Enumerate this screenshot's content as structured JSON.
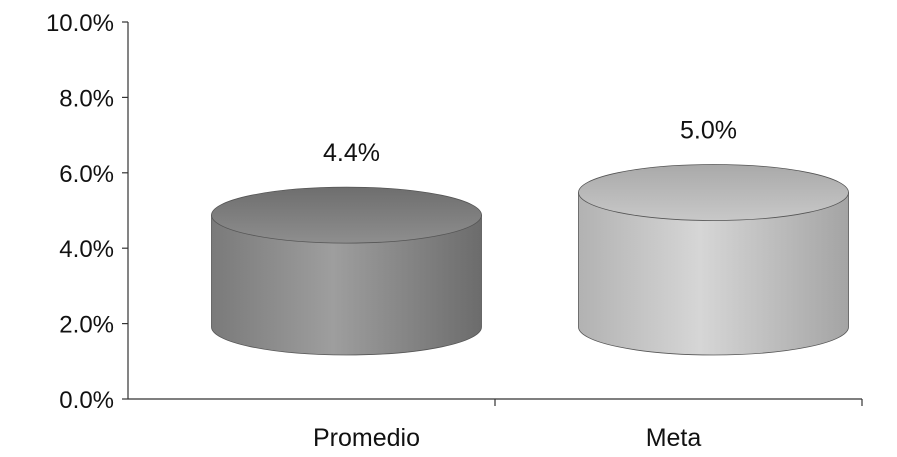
{
  "chart_data": {
    "type": "bar",
    "style": "3d-cylinder",
    "categories": [
      "Promedio",
      "Meta"
    ],
    "values": [
      4.4,
      5.0
    ],
    "data_labels": [
      "4.4%",
      "5.0%"
    ],
    "ylim": [
      0,
      10
    ],
    "y_ticks": [
      0,
      2,
      4,
      6,
      8,
      10
    ],
    "y_tick_labels": [
      "0.0%",
      "2.0%",
      "4.0%",
      "6.0%",
      "8.0%",
      "10.0%"
    ],
    "grid": false,
    "legend": "none",
    "colors": {
      "Promedio": "#8c8c8c",
      "Meta": "#c4c4c4"
    }
  }
}
